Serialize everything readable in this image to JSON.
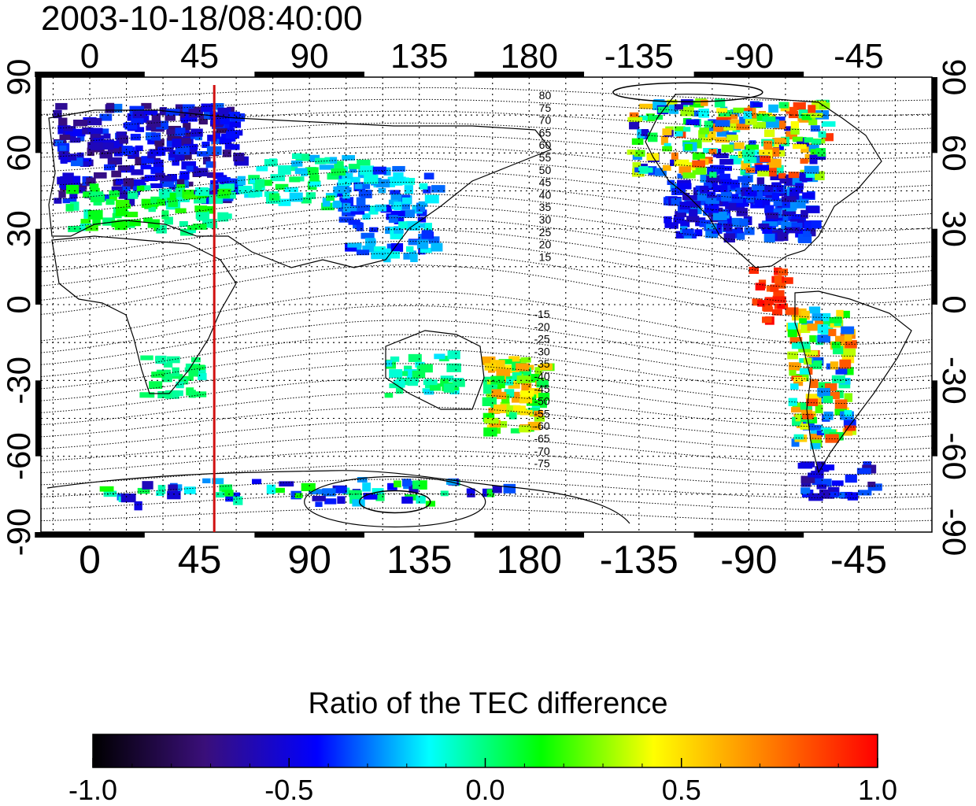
{
  "timestamp": "2003-10-18/08:40:00",
  "map": {
    "x_tick_labels": [
      "0",
      "45",
      "90",
      "135",
      "180",
      "-135",
      "-90",
      "-45"
    ],
    "x_tick_longitudes": [
      0,
      45,
      90,
      135,
      180,
      225,
      270,
      315
    ],
    "lon_range": [
      -20,
      345
    ],
    "y_tick_labels": [
      "90",
      "60",
      "30",
      "0",
      "-30",
      "-60",
      "-90"
    ],
    "y_tick_latitudes": [
      90,
      60,
      30,
      0,
      -30,
      -60,
      -90
    ],
    "lat_range": [
      -90,
      90
    ],
    "grid": "dotted every 15 degrees",
    "marker_line": {
      "longitude": 51,
      "color": "#d01010"
    },
    "contour_labels": [
      "80",
      "75",
      "70",
      "65",
      "60",
      "55",
      "50",
      "45",
      "40",
      "35",
      "30",
      "25",
      "20",
      "15",
      "-15",
      "-20",
      "-25",
      "-30",
      "-35",
      "-40",
      "-45",
      "-50",
      "-55",
      "-60",
      "-65",
      "-70",
      "-75"
    ]
  },
  "colorbar": {
    "title": "Ratio of the TEC difference",
    "min": -1.0,
    "max": 1.0,
    "tick_labels": [
      "-1.0",
      "-0.5",
      "0.0",
      "0.5",
      "1.0"
    ],
    "tick_values": [
      -1.0,
      -0.5,
      0.0,
      0.5,
      1.0
    ],
    "colors": [
      "#000000",
      "#3a0f7a",
      "#0000ff",
      "#00ffff",
      "#00ff00",
      "#ffff00",
      "#ff8000",
      "#ff0000"
    ]
  }
}
